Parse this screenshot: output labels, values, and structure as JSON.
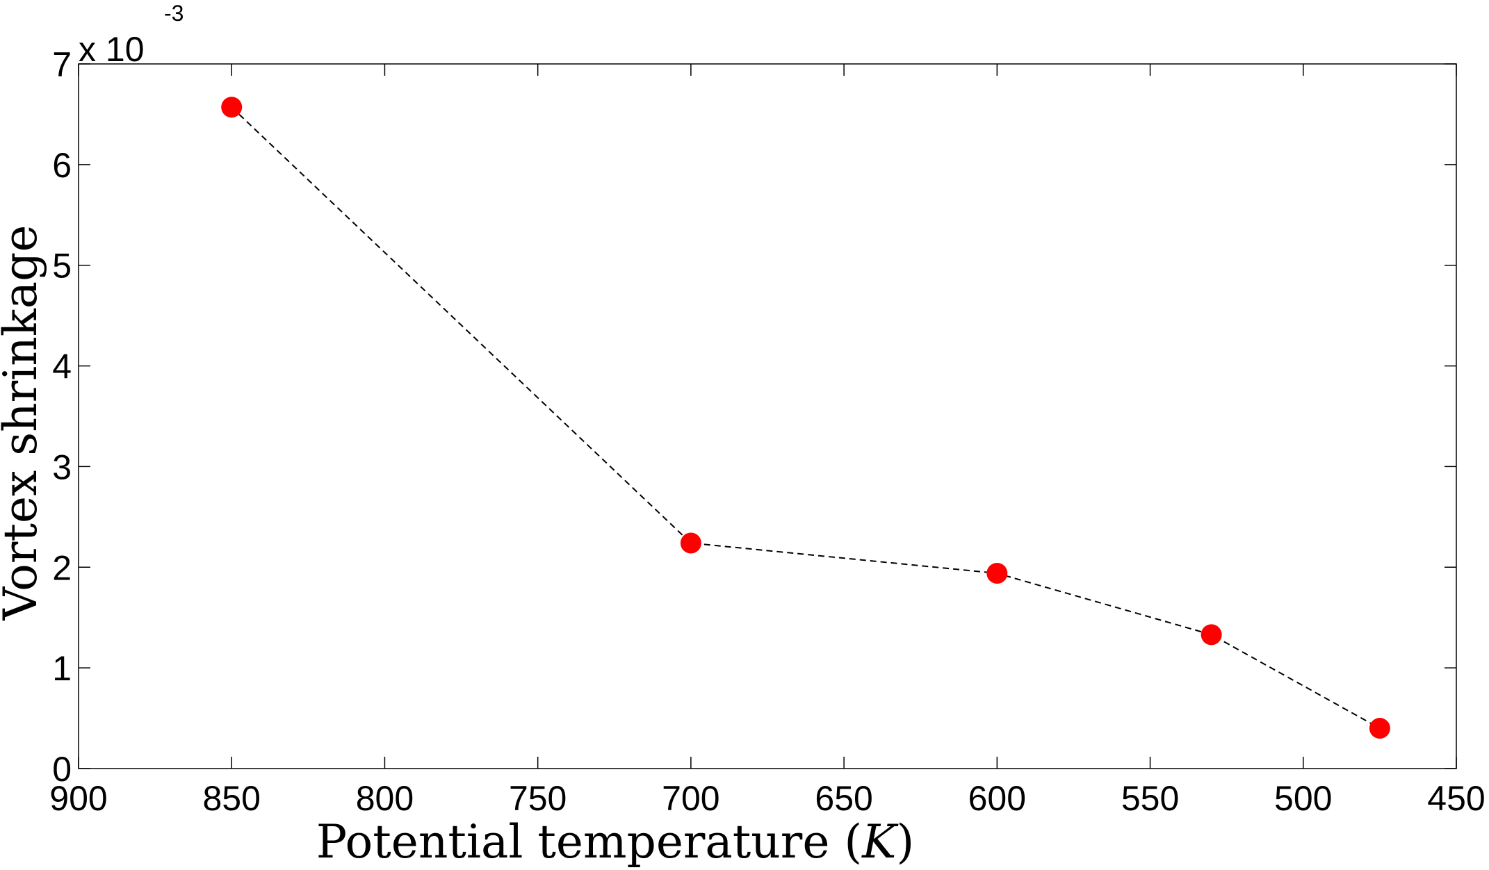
{
  "chart_data": {
    "type": "line",
    "xlabel": "Potential temperature (K)",
    "xlabel_parts": {
      "prefix": "Potential temperature (",
      "var": "K",
      "suffix": ")"
    },
    "ylabel": "Vortex shrinkage",
    "y_multiplier": {
      "base": "x 10",
      "exponent": "-3"
    },
    "x_reversed": true,
    "xlim": [
      900,
      450
    ],
    "ylim": [
      0,
      0.007
    ],
    "x_ticks": [
      900,
      850,
      800,
      750,
      700,
      650,
      600,
      550,
      500,
      450
    ],
    "x_tick_labels": [
      "900",
      "850",
      "800",
      "750",
      "700",
      "650",
      "600",
      "550",
      "500",
      "450"
    ],
    "y_ticks": [
      0,
      0.001,
      0.002,
      0.003,
      0.004,
      0.005,
      0.006,
      0.007
    ],
    "y_tick_labels": [
      "0",
      "1",
      "2",
      "3",
      "4",
      "5",
      "6",
      "7"
    ],
    "grid": false,
    "series": [
      {
        "x": [
          850,
          700,
          600,
          530,
          475
        ],
        "y": [
          0.00657,
          0.00224,
          0.00194,
          0.00133,
          0.0004
        ],
        "line_style": "dashed",
        "line_color": "#000000",
        "marker": "circle",
        "marker_color": "#ff0000"
      }
    ]
  }
}
